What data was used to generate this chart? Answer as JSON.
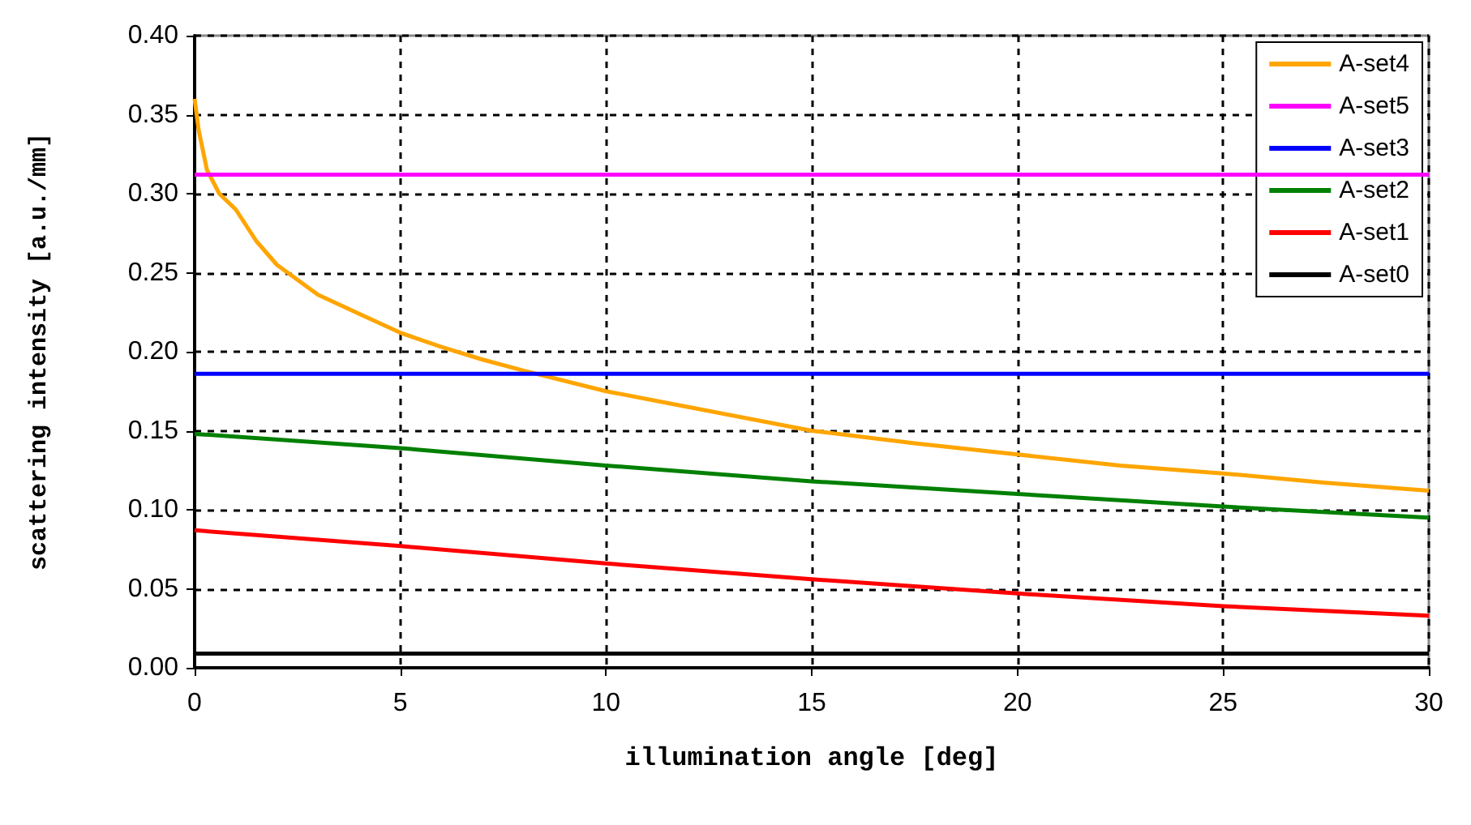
{
  "chart_data": {
    "type": "line",
    "xlabel": "illumination angle [deg]",
    "ylabel": "scattering intensity [a.u./mm]",
    "xlim": [
      0,
      30
    ],
    "xticks": [
      0,
      5,
      10,
      15,
      20,
      25,
      30
    ],
    "ylim": [
      0,
      0.4
    ],
    "yticks": [
      {
        "value": 0,
        "label": "0.00"
      },
      {
        "value": 0.05,
        "label": "0.05"
      },
      {
        "value": 0.1,
        "label": "0.10"
      },
      {
        "value": 0.15,
        "label": "0.15"
      },
      {
        "value": 0.2,
        "label": "0.20"
      },
      {
        "value": 0.25,
        "label": "0.25"
      },
      {
        "value": 0.3,
        "label": "0.30"
      },
      {
        "value": 0.35,
        "label": "0.35"
      },
      {
        "value": 0.4,
        "label": "0.40"
      }
    ],
    "grid": true,
    "legend": "top right",
    "line_style": "solid",
    "marker": "none",
    "series": [
      {
        "name": "A-set4",
        "color": "#ffa500",
        "x": [
          0,
          0.1,
          0.3,
          0.6,
          1,
          1.5,
          2,
          3,
          4,
          5,
          6,
          7,
          8,
          10,
          12,
          15,
          17.5,
          20,
          22.5,
          25,
          27.5,
          30
        ],
        "values": [
          0.36,
          0.34,
          0.315,
          0.3,
          0.29,
          0.27,
          0.255,
          0.236,
          0.224,
          0.212,
          0.203,
          0.195,
          0.188,
          0.175,
          0.165,
          0.15,
          0.142,
          0.135,
          0.128,
          0.123,
          0.117,
          0.112
        ]
      },
      {
        "name": "A-set5",
        "color": "#ff00ff",
        "x": [
          0,
          30
        ],
        "values": [
          0.312,
          0.312
        ]
      },
      {
        "name": "A-set3",
        "color": "#0000ff",
        "x": [
          0,
          30
        ],
        "values": [
          0.186,
          0.186
        ]
      },
      {
        "name": "A-set2",
        "color": "#008000",
        "x": [
          0,
          5,
          10,
          15,
          20,
          25,
          30
        ],
        "values": [
          0.148,
          0.139,
          0.128,
          0.118,
          0.11,
          0.102,
          0.095
        ]
      },
      {
        "name": "A-set1",
        "color": "#ff0000",
        "x": [
          0,
          5,
          10,
          15,
          20,
          25,
          30
        ],
        "values": [
          0.087,
          0.077,
          0.066,
          0.056,
          0.047,
          0.039,
          0.033
        ]
      },
      {
        "name": "A-set0",
        "color": "#000000",
        "x": [
          0,
          30
        ],
        "values": [
          0.009,
          0.009
        ]
      }
    ]
  }
}
